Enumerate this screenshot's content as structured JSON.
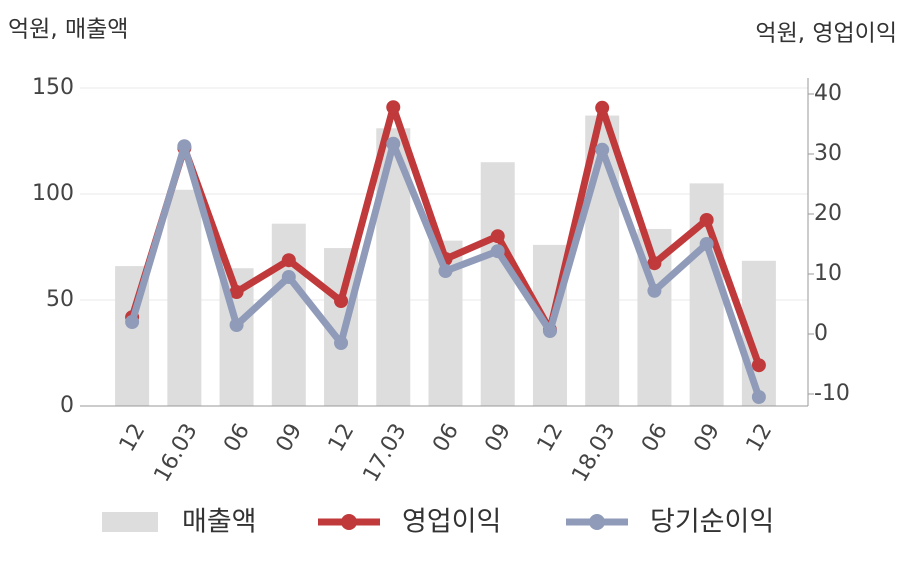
{
  "chart_data": {
    "type": "bar-line",
    "y_axis_title": "억원, 매출액",
    "y2_axis_title": "억원, 영업이익",
    "categories": [
      "12",
      "16.03",
      "06",
      "09",
      "12",
      "17.03",
      "06",
      "09",
      "12",
      "18.03",
      "06",
      "09",
      "12"
    ],
    "series": [
      {
        "name": "매출액",
        "type": "bar",
        "color": "#dddddd",
        "values": [
          66,
          102,
          65,
          86,
          74.5,
          131,
          78,
          115,
          76,
          137,
          83.5,
          105,
          68.5
        ]
      },
      {
        "name": "영업이익",
        "type": "line",
        "axis": "y2",
        "color": "#c0393b",
        "values": [
          2.8,
          31,
          7,
          12.3,
          5.5,
          37.8,
          12.5,
          16.3,
          0.7,
          37.7,
          11.8,
          19,
          -5.2
        ]
      },
      {
        "name": "당기순이익",
        "type": "line",
        "axis": "y2",
        "color": "#8f9bb8",
        "values": [
          2,
          31.3,
          1.5,
          9.5,
          -1.5,
          31.7,
          10.5,
          13.8,
          0.5,
          30.7,
          7.2,
          15,
          -10.5
        ]
      }
    ],
    "ylim": [
      0,
      150
    ],
    "yticks": [
      0,
      50,
      100,
      150
    ],
    "y2lim": [
      -12,
      41
    ],
    "y2ticks": [
      -10,
      0,
      10,
      20,
      30,
      40
    ],
    "grid": true,
    "legend": "bottom"
  }
}
